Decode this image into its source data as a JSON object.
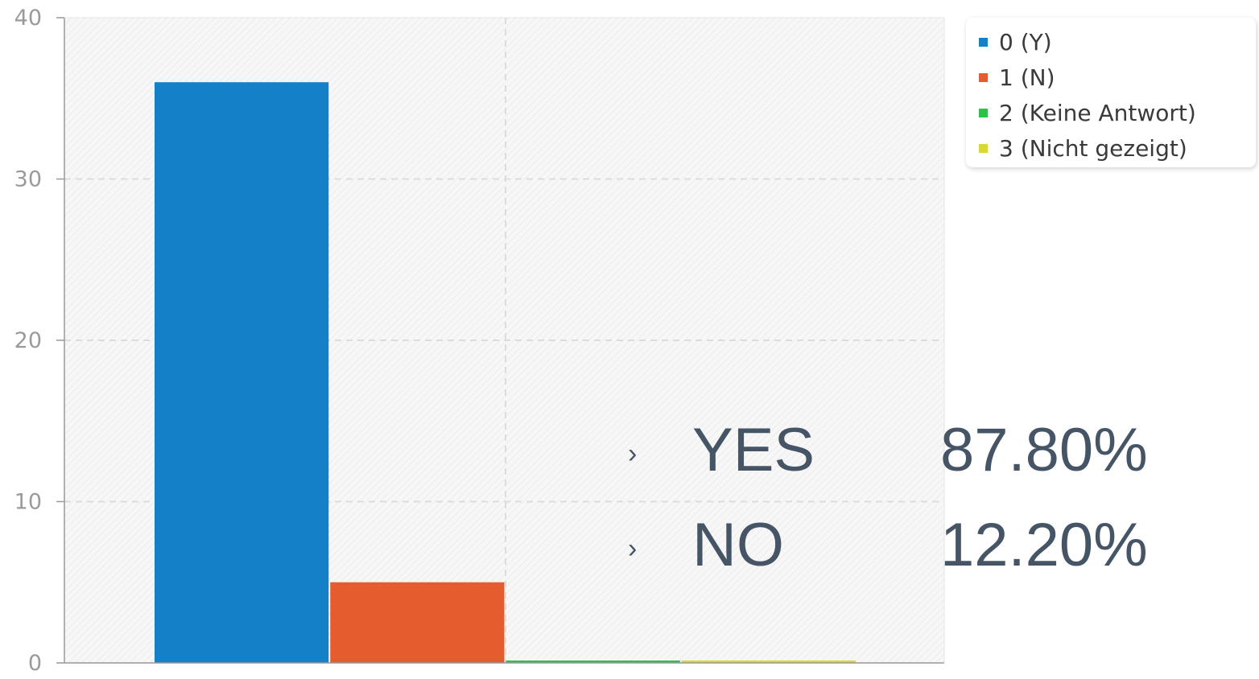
{
  "chart_data": {
    "type": "bar",
    "categories": [
      "0 (Y)",
      "1 (N)",
      "2 (Keine Antwort)",
      "3 (Nicht gezeigt)"
    ],
    "values": [
      36,
      5,
      0,
      0
    ],
    "ylim": [
      0,
      40
    ],
    "yticks": [
      0,
      10,
      20,
      30,
      40
    ],
    "grid": true,
    "legend_position": "top-right",
    "colors": [
      "#1380c8",
      "#e55d2e",
      "#2cc24a",
      "#d9d935"
    ]
  },
  "legend": [
    {
      "label": "0 (Y)",
      "color": "#1380c8"
    },
    {
      "label": "1 (N)",
      "color": "#e55d2e"
    },
    {
      "label": "2 (Keine Antwort)",
      "color": "#2cc24a"
    },
    {
      "label": "3 (Nicht gezeigt)",
      "color": "#d9d935"
    }
  ],
  "summary": {
    "bullet": "›",
    "rows": [
      {
        "label": "YES",
        "value": "87.80%"
      },
      {
        "label": "NO",
        "value": "12.20%"
      }
    ]
  }
}
